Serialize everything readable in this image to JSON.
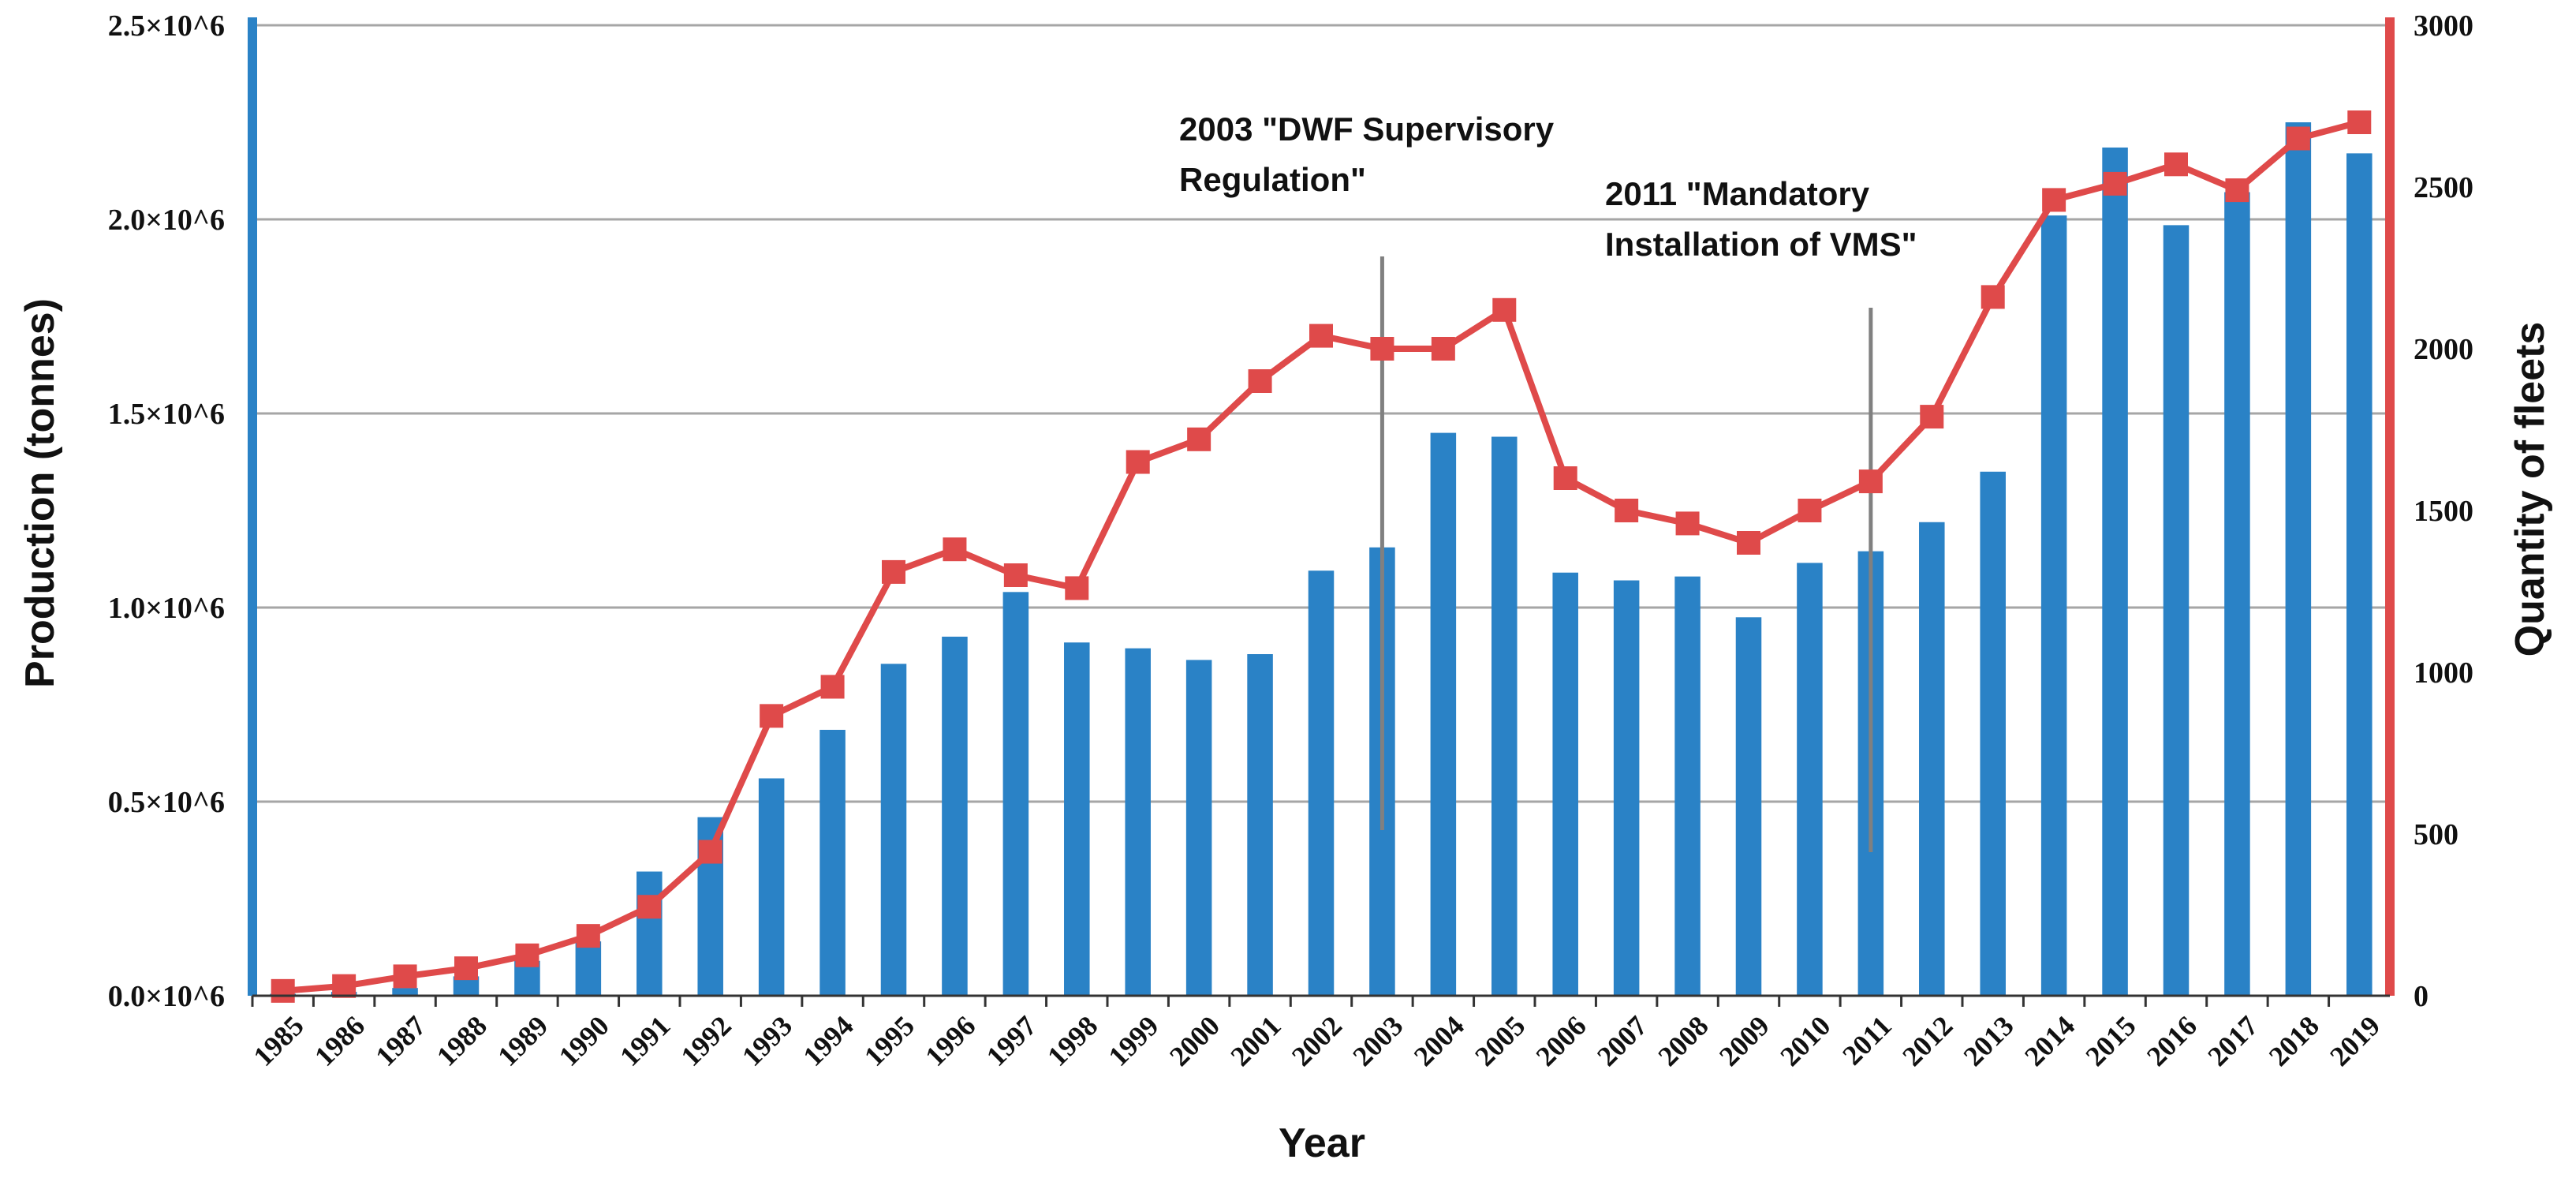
{
  "chart_data": {
    "type": "bar",
    "xlabel": "Year",
    "ylabel": "Production (tonnes)",
    "y2label": "Quantity of fleets",
    "categories": [
      "1985",
      "1986",
      "1987",
      "1988",
      "1989",
      "1990",
      "1991",
      "1992",
      "1993",
      "1994",
      "1995",
      "1996",
      "1997",
      "1998",
      "1999",
      "2000",
      "2001",
      "2002",
      "2003",
      "2004",
      "2005",
      "2006",
      "2007",
      "2008",
      "2009",
      "2010",
      "2011",
      "2012",
      "2013",
      "2014",
      "2015",
      "2016",
      "2017",
      "2018",
      "2019"
    ],
    "series": [
      {
        "name": "Production (tonnes)",
        "type": "bar",
        "axis": "left",
        "color": "#2a82c6",
        "values": [
          5000,
          10000,
          20000,
          50000,
          90000,
          140000,
          320000,
          460000,
          560000,
          685000,
          855000,
          925000,
          1040000,
          910000,
          895000,
          865000,
          880000,
          1095000,
          1155000,
          1450000,
          1440000,
          1090000,
          1070000,
          1080000,
          975000,
          1115000,
          1145000,
          1220000,
          1350000,
          2010000,
          2185000,
          1985000,
          2070000,
          2250000,
          2170000
        ]
      },
      {
        "name": "Quantity of fleets",
        "type": "line",
        "axis": "right",
        "color": "#df4a4a",
        "values": [
          15,
          30,
          60,
          85,
          125,
          185,
          275,
          445,
          865,
          955,
          1310,
          1380,
          1300,
          1260,
          1650,
          1720,
          1900,
          2040,
          2000,
          2000,
          2120,
          1600,
          1500,
          1460,
          1400,
          1500,
          1590,
          1790,
          2160,
          2460,
          2510,
          2570,
          2490,
          2650,
          2700
        ]
      }
    ],
    "yticks_left": [
      "0.0×10^6",
      "0.5×10^6",
      "1.0×10^6",
      "1.5×10^6",
      "2.0×10^6",
      "2.5×10^6"
    ],
    "yticks_right": [
      "0",
      "500",
      "1000",
      "1500",
      "2000",
      "2500",
      "3000"
    ],
    "ylim": [
      0,
      2500000
    ],
    "y2lim": [
      0,
      3000
    ],
    "grid": true,
    "annotations": [
      {
        "category": "2003",
        "lines": [
          "2003 \"DWF Supervisory",
          "Regulation\""
        ]
      },
      {
        "category": "2011",
        "lines": [
          "2011 \"Mandatory",
          "Installation of VMS\""
        ]
      }
    ]
  }
}
